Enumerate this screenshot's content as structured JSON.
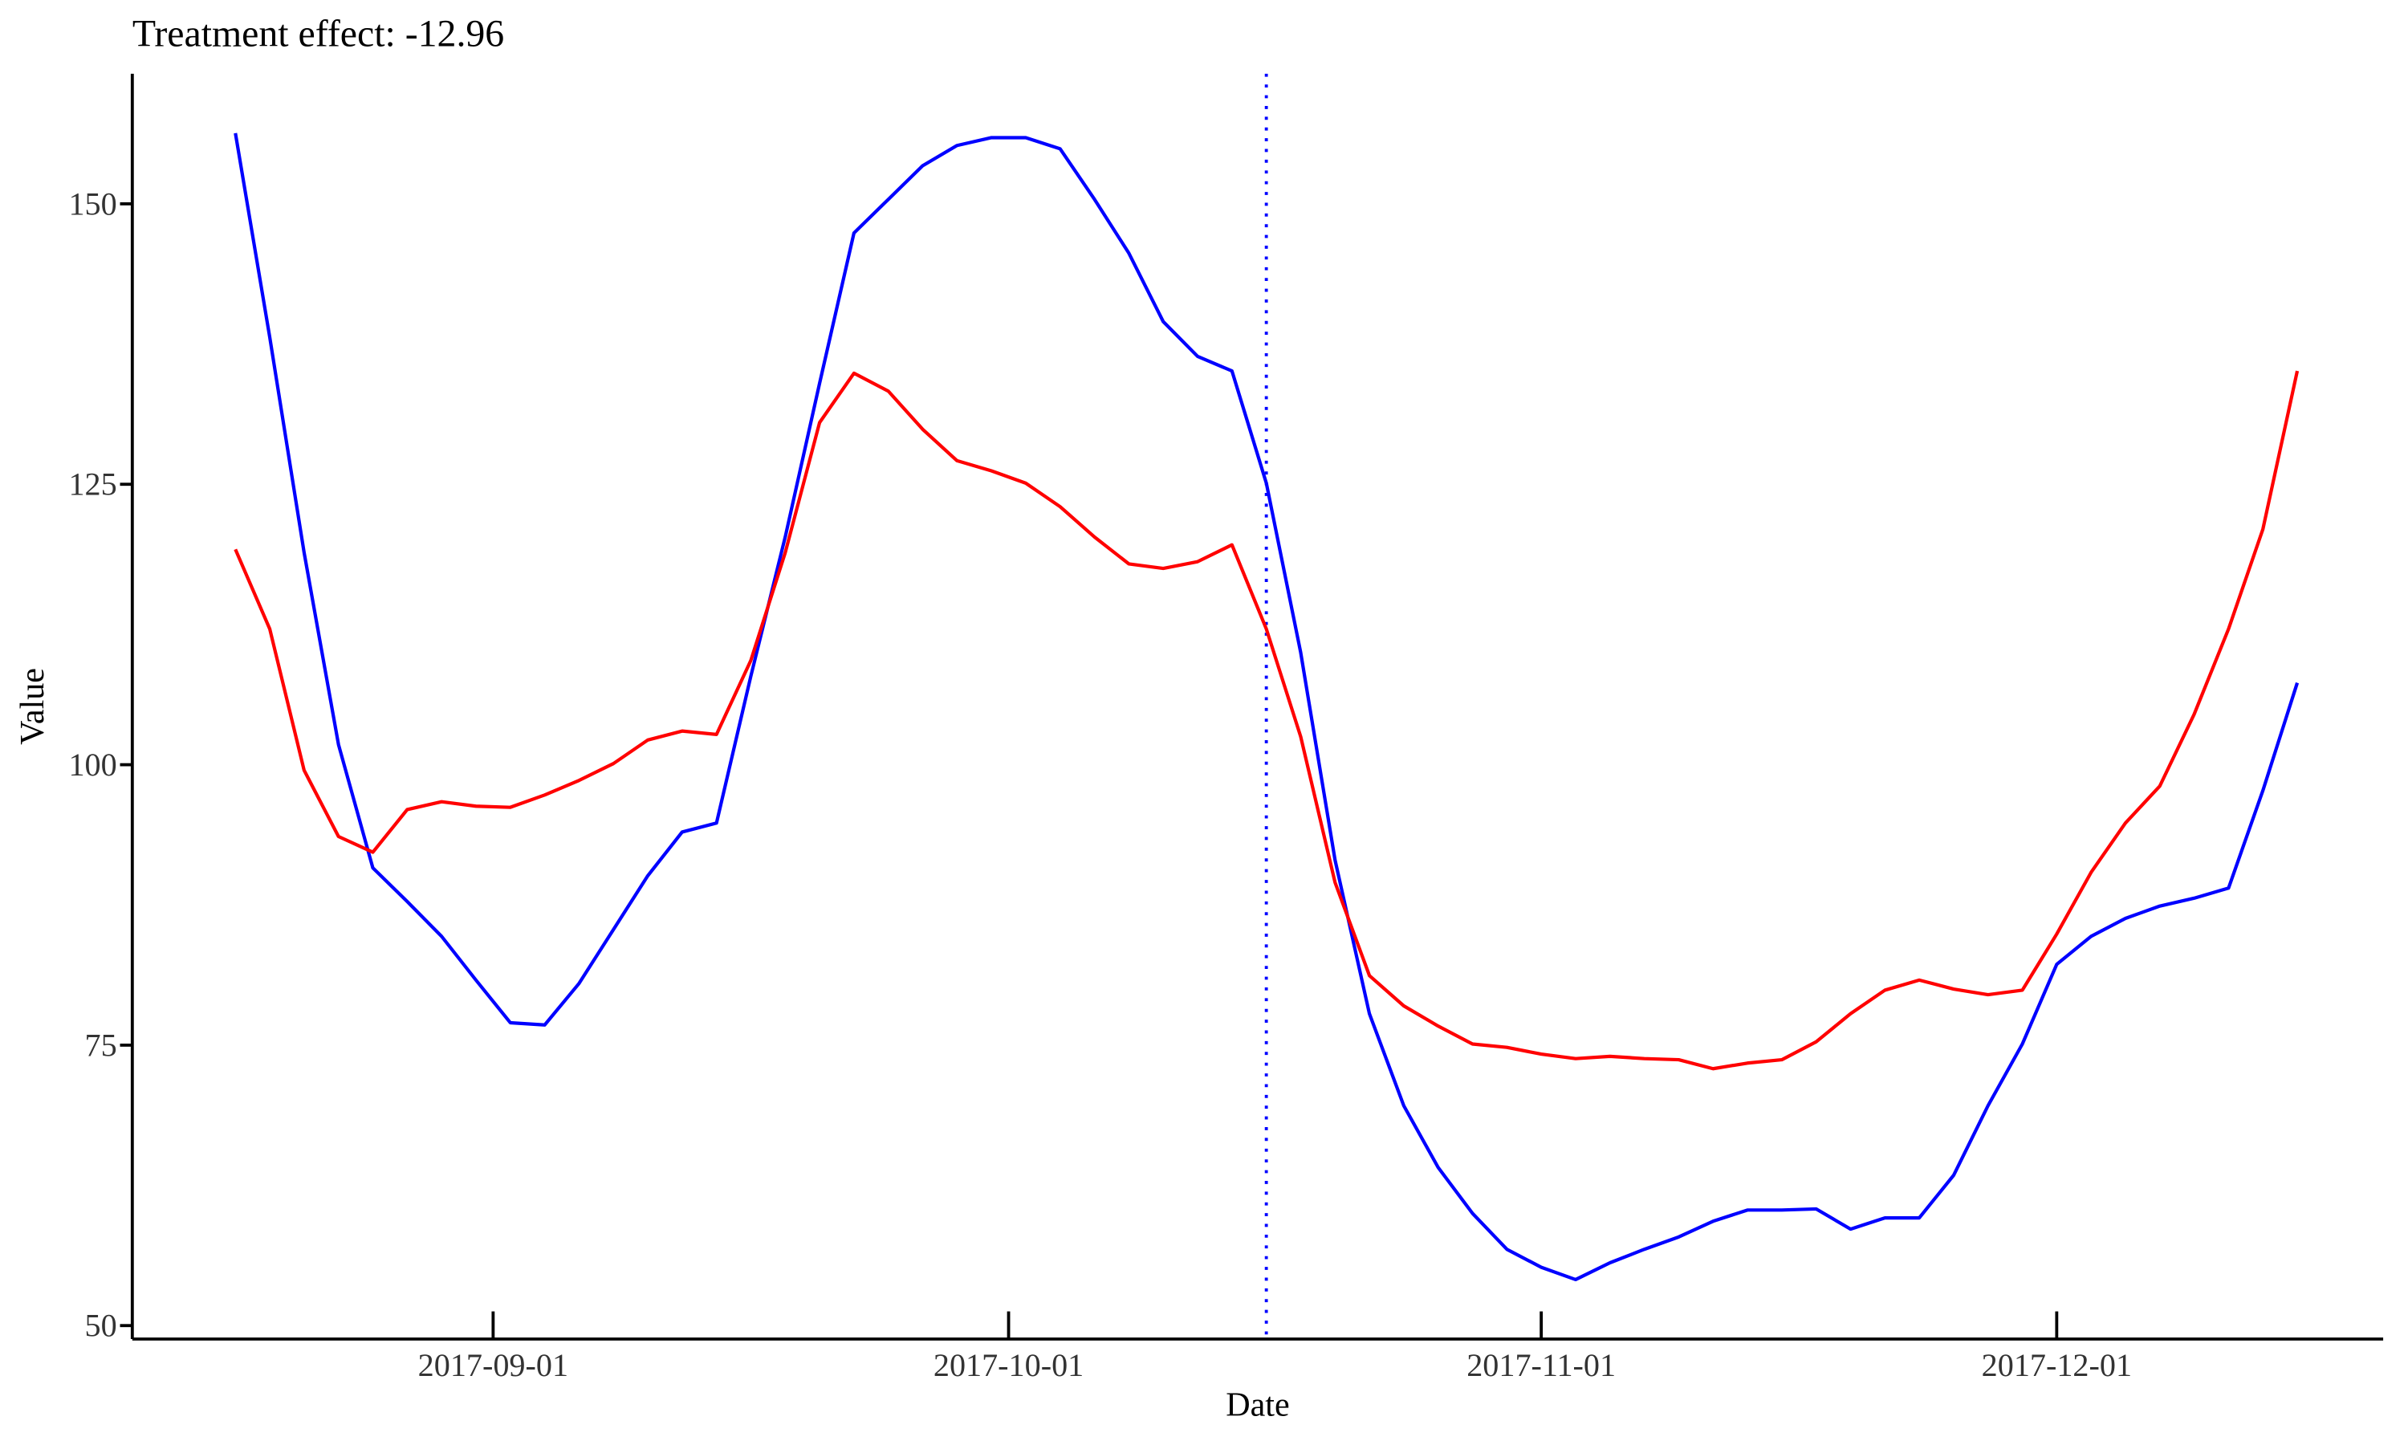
{
  "chart_data": {
    "type": "line",
    "title": "Treatment effect: -12.96",
    "x_label": "Date",
    "y_label": "Value",
    "x": [
      "2017-08-17",
      "2017-08-19",
      "2017-08-21",
      "2017-08-23",
      "2017-08-25",
      "2017-08-27",
      "2017-08-29",
      "2017-08-31",
      "2017-09-02",
      "2017-09-04",
      "2017-09-06",
      "2017-09-08",
      "2017-09-10",
      "2017-09-12",
      "2017-09-14",
      "2017-09-16",
      "2017-09-18",
      "2017-09-20",
      "2017-09-22",
      "2017-09-24",
      "2017-09-26",
      "2017-09-28",
      "2017-09-30",
      "2017-10-02",
      "2017-10-04",
      "2017-10-06",
      "2017-10-08",
      "2017-10-10",
      "2017-10-12",
      "2017-10-14",
      "2017-10-16",
      "2017-10-18",
      "2017-10-20",
      "2017-10-22",
      "2017-10-24",
      "2017-10-26",
      "2017-10-28",
      "2017-10-30",
      "2017-11-01",
      "2017-11-03",
      "2017-11-05",
      "2017-11-07",
      "2017-11-09",
      "2017-11-11",
      "2017-11-13",
      "2017-11-15",
      "2017-11-17",
      "2017-11-19",
      "2017-11-21",
      "2017-11-23",
      "2017-11-25",
      "2017-11-27",
      "2017-11-29",
      "2017-12-01",
      "2017-12-03",
      "2017-12-05",
      "2017-12-07",
      "2017-12-09",
      "2017-12-11",
      "2017-12-13",
      "2017-12-15"
    ],
    "series": [
      {
        "color": "#0000ff",
        "values": [
          156.3,
          138.1,
          118.9,
          101.8,
          90.8,
          87.8,
          84.7,
          80.8,
          77.0,
          76.8,
          80.5,
          85.3,
          90.1,
          94.0,
          94.8,
          107.9,
          120.3,
          134.0,
          147.4,
          150.4,
          153.4,
          155.2,
          155.9,
          155.9,
          154.9,
          150.4,
          145.6,
          139.5,
          136.4,
          135.1,
          125.1,
          110.0,
          91.5,
          77.8,
          69.6,
          64.1,
          60.0,
          56.8,
          55.2,
          54.1,
          55.6,
          56.8,
          57.9,
          59.3,
          60.3,
          60.3,
          60.4,
          58.6,
          59.6,
          59.6,
          63.4,
          69.6,
          75.1,
          82.2,
          84.7,
          86.3,
          87.4,
          88.1,
          89.0,
          97.7,
          107.3
        ]
      },
      {
        "color": "#ff0000",
        "values": [
          119.2,
          112.1,
          99.5,
          93.6,
          92.2,
          96.0,
          96.7,
          96.3,
          96.2,
          97.3,
          98.6,
          100.1,
          102.2,
          103.0,
          102.7,
          109.3,
          118.9,
          130.5,
          134.9,
          133.3,
          129.9,
          127.1,
          126.2,
          125.1,
          123.0,
          120.3,
          117.9,
          117.5,
          118.1,
          119.6,
          112.1,
          102.5,
          89.5,
          81.2,
          78.5,
          76.7,
          75.1,
          74.8,
          74.2,
          73.8,
          74.0,
          73.8,
          73.7,
          72.9,
          73.4,
          73.7,
          75.3,
          77.8,
          79.9,
          80.8,
          80.0,
          79.5,
          79.9,
          84.9,
          90.4,
          94.8,
          98.1,
          104.5,
          112.1,
          121.0,
          135.1
        ]
      }
    ],
    "xlim": [
      "2017-08-11",
      "2017-12-20"
    ],
    "xticks": [
      "2017-09-01",
      "2017-10-01",
      "2017-11-01",
      "2017-12-01"
    ],
    "ylim": [
      48.8,
      161.6
    ],
    "yticks": [
      50,
      75,
      100,
      125,
      150
    ],
    "vline": {
      "x": "2017-10-16",
      "color": "#0000ff"
    }
  }
}
